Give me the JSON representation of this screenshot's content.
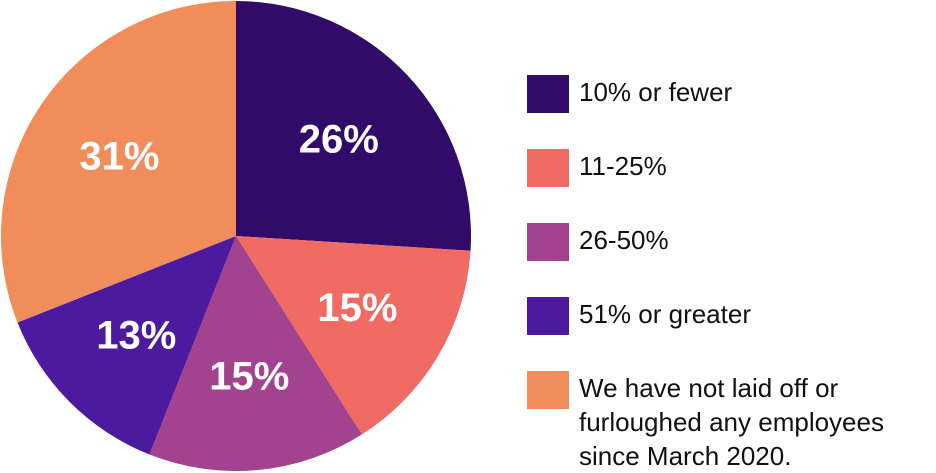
{
  "chart_data": {
    "type": "pie",
    "categories": [
      "10% or fewer",
      "11-25%",
      "26-50%",
      "51% or greater",
      "We have not laid off or furloughed any employees since March 2020."
    ],
    "values": [
      26,
      15,
      15,
      13,
      31
    ],
    "value_labels": [
      "26%",
      "15%",
      "15%",
      "13%",
      "31%"
    ],
    "colors": [
      "#300b69",
      "#f06b63",
      "#a3428f",
      "#4c1a9e",
      "#f08d5a"
    ]
  }
}
